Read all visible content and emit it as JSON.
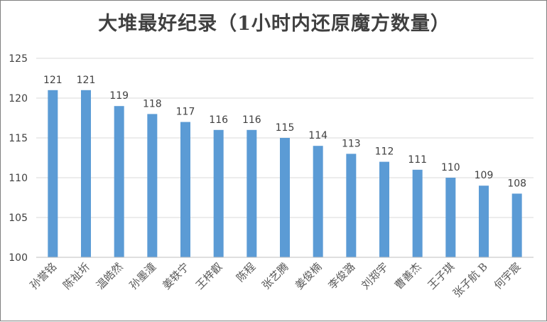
{
  "chart_data": {
    "type": "bar",
    "title": "大堆最好纪录（1小时内还原魔方数量）",
    "categories": [
      "孙誉铭",
      "陈祉圻",
      "温皓然",
      "孙墨潼",
      "姜轶宁",
      "王梓叡",
      "陈程",
      "张艺腾",
      "姜俊楠",
      "李俊潞",
      "刘郑宇",
      "曹善杰",
      "王子琪",
      "张子航 B",
      "何宇宸"
    ],
    "values": [
      121,
      121,
      119,
      118,
      117,
      116,
      116,
      115,
      114,
      113,
      112,
      111,
      110,
      109,
      108
    ],
    "ylim": [
      100,
      125
    ],
    "yticks": [
      100,
      105,
      110,
      115,
      120,
      125
    ],
    "xlabel": "",
    "ylabel": "",
    "grid": true,
    "legend": "none",
    "bar_color": "#5b9bd5",
    "grid_color": "#d9d9d9",
    "axis_color": "#bfbfbf"
  }
}
